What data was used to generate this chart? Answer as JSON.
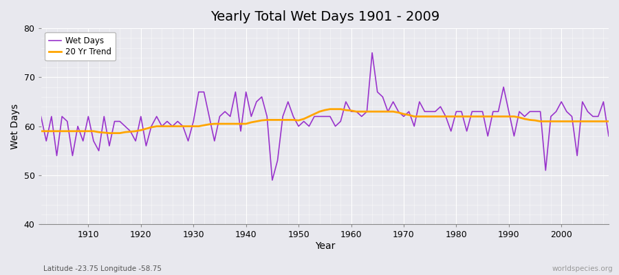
{
  "title": "Yearly Total Wet Days 1901 - 2009",
  "xlabel": "Year",
  "ylabel": "Wet Days",
  "subtitle_lat": "Latitude -23.75 Longitude -58.75",
  "watermark": "worldspecies.org",
  "ylim": [
    40,
    80
  ],
  "xlim": [
    1901,
    2009
  ],
  "yticks": [
    40,
    50,
    60,
    70,
    80
  ],
  "xticks": [
    1910,
    1920,
    1930,
    1940,
    1950,
    1960,
    1970,
    1980,
    1990,
    2000
  ],
  "wet_days_color": "#9933CC",
  "trend_color": "#FFA500",
  "bg_color": "#E8E8EE",
  "years": [
    1901,
    1902,
    1903,
    1904,
    1905,
    1906,
    1907,
    1908,
    1909,
    1910,
    1911,
    1912,
    1913,
    1914,
    1915,
    1916,
    1917,
    1918,
    1919,
    1920,
    1921,
    1922,
    1923,
    1924,
    1925,
    1926,
    1927,
    1928,
    1929,
    1930,
    1931,
    1932,
    1933,
    1934,
    1935,
    1936,
    1937,
    1938,
    1939,
    1940,
    1941,
    1942,
    1943,
    1944,
    1945,
    1946,
    1947,
    1948,
    1949,
    1950,
    1951,
    1952,
    1953,
    1954,
    1955,
    1956,
    1957,
    1958,
    1959,
    1960,
    1961,
    1962,
    1963,
    1964,
    1965,
    1966,
    1967,
    1968,
    1969,
    1970,
    1971,
    1972,
    1973,
    1974,
    1975,
    1976,
    1977,
    1978,
    1979,
    1980,
    1981,
    1982,
    1983,
    1984,
    1985,
    1986,
    1987,
    1988,
    1989,
    1990,
    1991,
    1992,
    1993,
    1994,
    1995,
    1996,
    1997,
    1998,
    1999,
    2000,
    2001,
    2002,
    2003,
    2004,
    2005,
    2006,
    2007,
    2008,
    2009
  ],
  "wet_days": [
    62,
    57,
    62,
    54,
    62,
    61,
    54,
    60,
    57,
    62,
    57,
    55,
    62,
    56,
    61,
    61,
    60,
    59,
    57,
    62,
    56,
    60,
    62,
    60,
    61,
    60,
    61,
    60,
    57,
    61,
    67,
    67,
    62,
    57,
    62,
    63,
    62,
    67,
    59,
    67,
    62,
    65,
    66,
    62,
    49,
    53,
    62,
    65,
    62,
    60,
    61,
    60,
    62,
    62,
    62,
    62,
    60,
    61,
    65,
    63,
    63,
    62,
    63,
    75,
    67,
    66,
    63,
    65,
    63,
    62,
    63,
    60,
    65,
    63,
    63,
    63,
    64,
    62,
    59,
    63,
    63,
    59,
    63,
    63,
    63,
    58,
    63,
    63,
    68,
    63,
    58,
    63,
    62,
    63,
    63,
    63,
    51,
    62,
    63,
    65,
    63,
    62,
    54,
    65,
    63,
    62,
    62,
    65,
    58
  ],
  "trend_start_year": 1901,
  "trend_values_all": [
    59.0,
    59.0,
    59.0,
    59.0,
    59.0,
    59.0,
    59.0,
    59.0,
    59.0,
    59.0,
    59.0,
    58.8,
    58.7,
    58.6,
    58.6,
    58.6,
    58.8,
    58.9,
    59.0,
    59.2,
    59.5,
    59.8,
    60.0,
    60.0,
    60.0,
    60.0,
    60.0,
    60.0,
    60.0,
    60.0,
    60.0,
    60.2,
    60.4,
    60.5,
    60.5,
    60.5,
    60.5,
    60.5,
    60.5,
    60.5,
    60.8,
    61.0,
    61.2,
    61.3,
    61.3,
    61.3,
    61.3,
    61.3,
    61.3,
    61.2,
    61.5,
    62.0,
    62.5,
    63.0,
    63.3,
    63.5,
    63.5,
    63.5,
    63.3,
    63.2,
    63.0,
    63.0,
    63.0,
    63.0,
    63.0,
    63.0,
    63.0,
    63.0,
    62.8,
    62.5,
    62.3,
    62.0,
    62.0,
    62.0,
    62.0,
    62.0,
    62.0,
    62.0,
    62.0,
    62.0,
    62.0,
    62.0,
    62.0,
    62.0,
    62.0,
    62.0,
    62.0,
    62.0,
    62.0,
    62.0,
    62.0,
    61.8,
    61.5,
    61.3,
    61.2,
    61.0,
    61.0,
    61.0,
    61.0,
    61.0,
    61.0,
    61.0,
    61.0,
    61.0,
    61.0,
    61.0,
    61.0,
    61.0,
    61.0
  ]
}
